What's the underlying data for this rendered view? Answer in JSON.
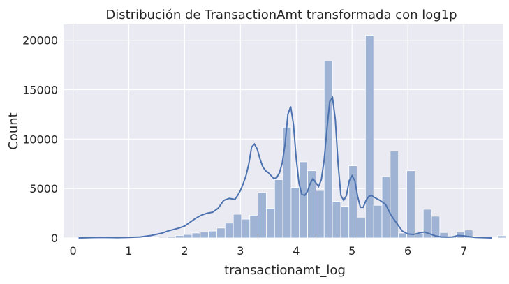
{
  "chart_data": {
    "type": "bar",
    "title": "Distribución de TransactionAmt transformada con log1p",
    "xlabel": "transactionamt_log",
    "ylabel": "Count",
    "xlim": [
      -0.17,
      7.7
    ],
    "ylim": [
      0,
      21600
    ],
    "x_ticks": [
      0,
      1,
      2,
      3,
      4,
      5,
      6,
      7
    ],
    "y_ticks": [
      0,
      5000,
      10000,
      15000,
      20000
    ],
    "grid": true,
    "colors": {
      "background": "#eaeaf2",
      "bar_fill": "#9fb3d5",
      "bar_edge": "#ffffff",
      "kde_line": "#4c72b0",
      "grid": "#ffffff",
      "text": "#262626"
    },
    "bins": {
      "edges_start": 0.06,
      "bin_width": 0.148,
      "counts": [
        5,
        5,
        10,
        15,
        25,
        40,
        35,
        30,
        35,
        45,
        80,
        120,
        250,
        350,
        500,
        600,
        700,
        1000,
        1500,
        2400,
        1900,
        2300,
        4600,
        3000,
        5900,
        11200,
        5100,
        7700,
        6800,
        4800,
        17900,
        3700,
        3200,
        7300,
        2100,
        20500,
        3300,
        6200,
        8800,
        500,
        6800,
        400,
        2900,
        2200,
        550,
        150,
        600,
        800,
        150,
        80,
        60,
        220,
        40
      ]
    },
    "kde": {
      "x": [
        0.1,
        0.5,
        0.8,
        1.0,
        1.2,
        1.4,
        1.6,
        1.7,
        1.8,
        1.9,
        2.0,
        2.1,
        2.2,
        2.3,
        2.4,
        2.5,
        2.6,
        2.7,
        2.8,
        2.9,
        2.95,
        3.0,
        3.05,
        3.1,
        3.15,
        3.2,
        3.25,
        3.3,
        3.35,
        3.4,
        3.45,
        3.5,
        3.55,
        3.6,
        3.65,
        3.7,
        3.75,
        3.8,
        3.85,
        3.9,
        3.95,
        4.0,
        4.05,
        4.1,
        4.15,
        4.2,
        4.25,
        4.3,
        4.35,
        4.4,
        4.45,
        4.5,
        4.55,
        4.6,
        4.65,
        4.7,
        4.75,
        4.8,
        4.85,
        4.9,
        4.95,
        5.0,
        5.05,
        5.1,
        5.15,
        5.2,
        5.25,
        5.3,
        5.35,
        5.4,
        5.5,
        5.6,
        5.7,
        5.8,
        5.9,
        6.0,
        6.1,
        6.2,
        6.3,
        6.4,
        6.5,
        6.6,
        6.7,
        6.8,
        6.9,
        7.0,
        7.2,
        7.5
      ],
      "y": [
        0,
        50,
        30,
        50,
        100,
        250,
        500,
        700,
        850,
        1000,
        1200,
        1600,
        2000,
        2300,
        2500,
        2600,
        3000,
        3800,
        4000,
        3900,
        4300,
        4800,
        5500,
        6300,
        7500,
        9200,
        9500,
        9000,
        8000,
        7200,
        6800,
        6600,
        6300,
        6000,
        6100,
        6600,
        7600,
        9500,
        12500,
        13300,
        11500,
        8000,
        5500,
        4400,
        4300,
        4700,
        5500,
        6000,
        5600,
        5200,
        5900,
        7900,
        11000,
        13800,
        14200,
        12000,
        7500,
        4300,
        3800,
        4300,
        5800,
        6300,
        5800,
        4200,
        3100,
        3100,
        3800,
        4200,
        4300,
        4100,
        3800,
        3400,
        2300,
        1500,
        700,
        400,
        350,
        500,
        600,
        400,
        200,
        100,
        80,
        100,
        250,
        200,
        50,
        0
      ]
    }
  }
}
